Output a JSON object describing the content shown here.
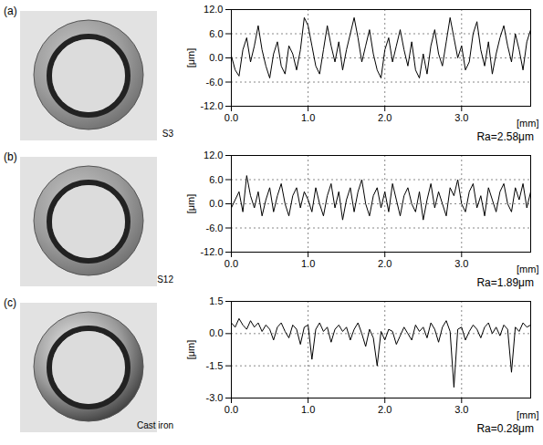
{
  "chart_data": [
    {
      "type": "line",
      "panel": "(a)",
      "photo_label": "S3",
      "color": "#000000",
      "grid": true,
      "xlabel": "[mm]",
      "ylabel": "[μm]",
      "xlim": [
        0,
        3.9
      ],
      "ylim": [
        -12,
        12
      ],
      "xticks": [
        {
          "value": 0,
          "label": "0.0"
        },
        {
          "value": 1,
          "label": "1.0"
        },
        {
          "value": 2,
          "label": "2.0"
        },
        {
          "value": 3,
          "label": "3.0"
        }
      ],
      "yticks": [
        {
          "value": -12,
          "label": "-12.0"
        },
        {
          "value": -6,
          "label": "-6.0"
        },
        {
          "value": 0,
          "label": "0.0"
        },
        {
          "value": 6,
          "label": "6.0"
        },
        {
          "value": 12,
          "label": "12.0"
        }
      ],
      "annotations": [
        "Ra=2.58μm"
      ],
      "x": [
        0,
        0.05,
        0.1,
        0.15,
        0.2,
        0.25,
        0.3,
        0.35,
        0.4,
        0.45,
        0.5,
        0.55,
        0.6,
        0.65,
        0.7,
        0.75,
        0.8,
        0.85,
        0.9,
        0.95,
        1,
        1.05,
        1.1,
        1.15,
        1.2,
        1.25,
        1.3,
        1.35,
        1.4,
        1.45,
        1.5,
        1.55,
        1.6,
        1.65,
        1.7,
        1.75,
        1.8,
        1.85,
        1.9,
        1.95,
        2,
        2.05,
        2.1,
        2.15,
        2.2,
        2.25,
        2.3,
        2.35,
        2.4,
        2.45,
        2.5,
        2.55,
        2.6,
        2.65,
        2.7,
        2.75,
        2.8,
        2.85,
        2.9,
        2.95,
        3,
        3.05,
        3.1,
        3.15,
        3.2,
        3.25,
        3.3,
        3.35,
        3.4,
        3.45,
        3.5,
        3.55,
        3.6,
        3.65,
        3.7,
        3.75,
        3.8,
        3.85,
        3.9
      ],
      "values": [
        0.5,
        -3,
        -4.5,
        2,
        5,
        -1,
        3,
        8,
        2,
        -2,
        -5,
        1,
        4,
        -2,
        -4,
        3,
        1,
        -3,
        2,
        10,
        8,
        3,
        -2,
        -4,
        2,
        8,
        3,
        -1,
        4,
        -3,
        2,
        6,
        10,
        5,
        -1,
        3,
        7,
        1,
        -3,
        -5,
        2,
        5,
        -1,
        3,
        7,
        2,
        -2,
        4,
        -3,
        -5,
        1,
        -4,
        3,
        7,
        1,
        -2,
        4,
        10,
        5,
        0,
        3,
        -3,
        -1,
        6,
        9,
        2,
        -2,
        4,
        -4,
        1,
        5,
        8,
        3,
        -1,
        6,
        2,
        -3,
        4,
        7
      ]
    },
    {
      "type": "line",
      "panel": "(b)",
      "photo_label": "S12",
      "color": "#000000",
      "grid": true,
      "xlabel": "[mm]",
      "ylabel": "[μm]",
      "xlim": [
        0,
        3.9
      ],
      "ylim": [
        -12,
        12
      ],
      "xticks": [
        {
          "value": 0,
          "label": "0.0"
        },
        {
          "value": 1,
          "label": "1.0"
        },
        {
          "value": 2,
          "label": "2.0"
        },
        {
          "value": 3,
          "label": "3.0"
        }
      ],
      "yticks": [
        {
          "value": -12,
          "label": "-12.0"
        },
        {
          "value": -6,
          "label": "-6.0"
        },
        {
          "value": 0,
          "label": "0.0"
        },
        {
          "value": 6,
          "label": "6.0"
        },
        {
          "value": 12,
          "label": "12.0"
        }
      ],
      "annotations": [
        "Ra=1.89μm"
      ],
      "x": [
        0,
        0.05,
        0.1,
        0.15,
        0.2,
        0.25,
        0.3,
        0.35,
        0.4,
        0.45,
        0.5,
        0.55,
        0.6,
        0.65,
        0.7,
        0.75,
        0.8,
        0.85,
        0.9,
        0.95,
        1,
        1.05,
        1.1,
        1.15,
        1.2,
        1.25,
        1.3,
        1.35,
        1.4,
        1.45,
        1.5,
        1.55,
        1.6,
        1.65,
        1.7,
        1.75,
        1.8,
        1.85,
        1.9,
        1.95,
        2,
        2.05,
        2.1,
        2.15,
        2.2,
        2.25,
        2.3,
        2.35,
        2.4,
        2.45,
        2.5,
        2.55,
        2.6,
        2.65,
        2.7,
        2.75,
        2.8,
        2.85,
        2.9,
        2.95,
        3,
        3.05,
        3.1,
        3.15,
        3.2,
        3.25,
        3.3,
        3.35,
        3.4,
        3.45,
        3.5,
        3.55,
        3.6,
        3.65,
        3.7,
        3.75,
        3.8,
        3.85,
        3.9
      ],
      "values": [
        -1,
        1,
        3,
        -2,
        7,
        2,
        -1,
        3,
        -3,
        1,
        4,
        -2,
        2,
        5,
        0,
        -3,
        2,
        4,
        -1,
        3,
        1,
        -2,
        4,
        0,
        -3,
        2,
        5,
        -1,
        3,
        -4,
        1,
        4,
        -2,
        3,
        6,
        0,
        -3,
        2,
        4,
        -1,
        3,
        -2,
        5,
        1,
        -3,
        2,
        4,
        0,
        -2,
        3,
        -4,
        1,
        5,
        -1,
        3,
        0,
        -3,
        4,
        2,
        6,
        0,
        -2,
        3,
        5,
        -1,
        2,
        -3,
        4,
        1,
        -2,
        3,
        5,
        0,
        -2,
        4,
        1,
        5,
        -1,
        3
      ]
    },
    {
      "type": "line",
      "panel": "(c)",
      "photo_label": "Cast iron",
      "color": "#000000",
      "grid": true,
      "xlabel": "[mm]",
      "ylabel": "[μm]",
      "xlim": [
        0,
        3.9
      ],
      "ylim": [
        -3,
        1.5
      ],
      "xticks": [
        {
          "value": 0,
          "label": "0.0"
        },
        {
          "value": 1,
          "label": "1.0"
        },
        {
          "value": 2,
          "label": "2.0"
        },
        {
          "value": 3,
          "label": "3.0"
        }
      ],
      "yticks": [
        {
          "value": -3,
          "label": "-3.0"
        },
        {
          "value": -1.5,
          "label": "-1.5"
        },
        {
          "value": 0,
          "label": "0.0"
        },
        1.5
      ],
      "annotations": [
        "Ra=0.28μm"
      ],
      "x": [
        0,
        0.05,
        0.1,
        0.15,
        0.2,
        0.25,
        0.3,
        0.35,
        0.4,
        0.45,
        0.5,
        0.55,
        0.6,
        0.65,
        0.7,
        0.75,
        0.8,
        0.85,
        0.9,
        0.95,
        1,
        1.05,
        1.1,
        1.15,
        1.2,
        1.25,
        1.3,
        1.35,
        1.4,
        1.45,
        1.5,
        1.55,
        1.6,
        1.65,
        1.7,
        1.75,
        1.8,
        1.85,
        1.9,
        1.95,
        2,
        2.05,
        2.1,
        2.15,
        2.2,
        2.25,
        2.3,
        2.35,
        2.4,
        2.45,
        2.5,
        2.55,
        2.6,
        2.65,
        2.7,
        2.75,
        2.8,
        2.85,
        2.9,
        2.95,
        3,
        3.05,
        3.1,
        3.15,
        3.2,
        3.25,
        3.3,
        3.35,
        3.4,
        3.45,
        3.5,
        3.55,
        3.6,
        3.65,
        3.7,
        3.75,
        3.8,
        3.85,
        3.9
      ],
      "values": [
        0.5,
        0.3,
        0.7,
        0.4,
        0.2,
        0.6,
        0.3,
        0.5,
        0.1,
        0.4,
        0.2,
        -0.3,
        0.3,
        0.5,
        0.1,
        -0.2,
        0.4,
        0.2,
        -0.5,
        0.3,
        0.4,
        -1.2,
        0.2,
        0.5,
        0.1,
        0.3,
        -0.4,
        0.2,
        0.4,
        0.1,
        0.3,
        -0.3,
        0.2,
        0.5,
        0,
        -0.6,
        0.2,
        -0.2,
        -1.5,
        0.1,
        -0.3,
        0.2,
        0.1,
        -0.5,
        -0.1,
        0.3,
        0,
        -0.3,
        0.4,
        0.1,
        0.3,
        -0.2,
        0.5,
        0.2,
        -0.4,
        0.3,
        0.6,
        0.1,
        -2.5,
        0.2,
        0.3,
        -0.3,
        0.1,
        0.4,
        0.2,
        -0.2,
        0.3,
        0.5,
        0,
        0.3,
        -0.1,
        0.4,
        0.2,
        -1.8,
        0.3,
        0.1,
        0.5,
        0.3,
        0.4
      ]
    }
  ]
}
